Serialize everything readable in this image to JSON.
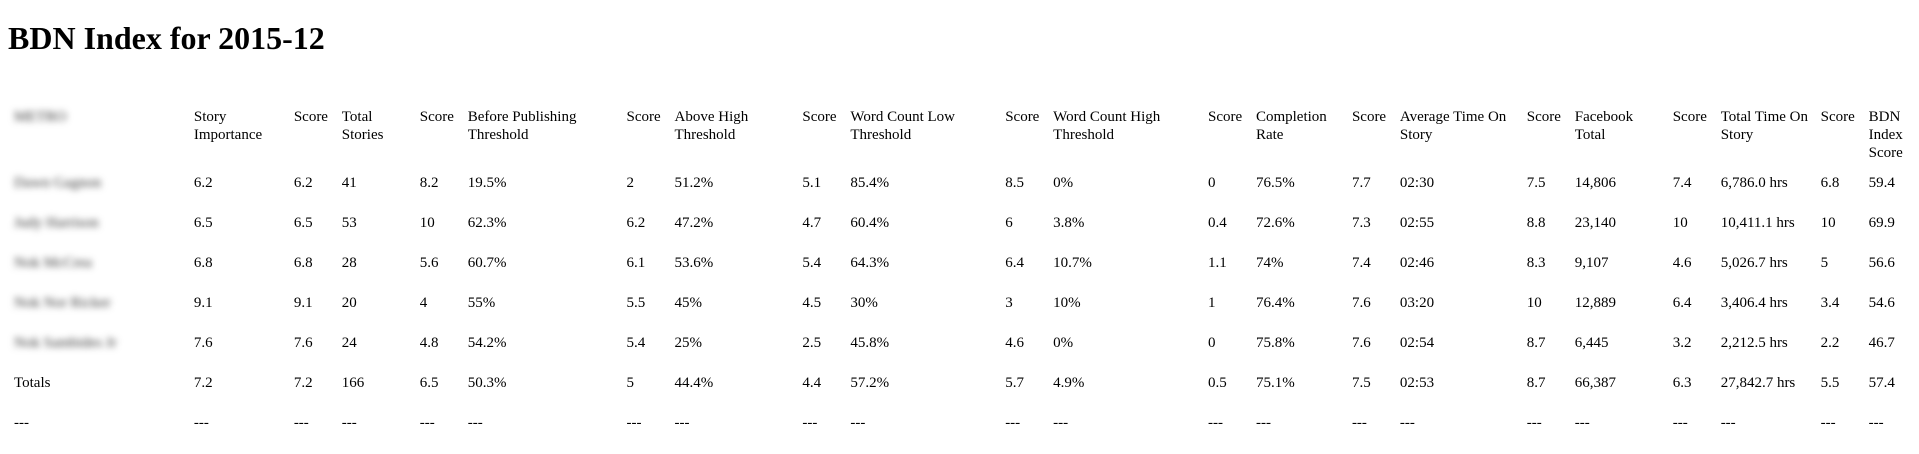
{
  "title": "BDN Index for 2015-12",
  "table": {
    "headers": [
      "METRO",
      "Story Importance",
      "Score",
      "Total Stories",
      "Score",
      "Before Publishing Threshold",
      "Score",
      "Above High Threshold",
      "Score",
      "Word Count Low Threshold",
      "Score",
      "Word Count High Threshold",
      "Score",
      "Completion Rate",
      "Score",
      "Average Time On Story",
      "Score",
      "Facebook Total",
      "Score",
      "Total Time On Story",
      "Score",
      "BDN Index Score"
    ],
    "rows": [
      [
        "Dawn Gagnon",
        "6.2",
        "6.2",
        "41",
        "8.2",
        "19.5%",
        "2",
        "51.2%",
        "5.1",
        "85.4%",
        "8.5",
        "0%",
        "0",
        "76.5%",
        "7.7",
        "02:30",
        "7.5",
        "14,806",
        "7.4",
        "6,786.0 hrs",
        "6.8",
        "59.4"
      ],
      [
        "Judy Harrison",
        "6.5",
        "6.5",
        "53",
        "10",
        "62.3%",
        "6.2",
        "47.2%",
        "4.7",
        "60.4%",
        "6",
        "3.8%",
        "0.4",
        "72.6%",
        "7.3",
        "02:55",
        "8.8",
        "23,140",
        "10",
        "10,411.1 hrs",
        "10",
        "69.9"
      ],
      [
        "Nok McCrea",
        "6.8",
        "6.8",
        "28",
        "5.6",
        "60.7%",
        "6.1",
        "53.6%",
        "5.4",
        "64.3%",
        "6.4",
        "10.7%",
        "1.1",
        "74%",
        "7.4",
        "02:46",
        "8.3",
        "9,107",
        "4.6",
        "5,026.7 hrs",
        "5",
        "56.6"
      ],
      [
        "Nok Nor Ricker",
        "9.1",
        "9.1",
        "20",
        "4",
        "55%",
        "5.5",
        "45%",
        "4.5",
        "30%",
        "3",
        "10%",
        "1",
        "76.4%",
        "7.6",
        "03:20",
        "10",
        "12,889",
        "6.4",
        "3,406.4 hrs",
        "3.4",
        "54.6"
      ],
      [
        "Nok Sambides Jr",
        "7.6",
        "7.6",
        "24",
        "4.8",
        "54.2%",
        "5.4",
        "25%",
        "2.5",
        "45.8%",
        "4.6",
        "0%",
        "0",
        "75.8%",
        "7.6",
        "02:54",
        "8.7",
        "6,445",
        "3.2",
        "2,212.5 hrs",
        "2.2",
        "46.7"
      ],
      [
        "Totals",
        "7.2",
        "7.2",
        "166",
        "6.5",
        "50.3%",
        "5",
        "44.4%",
        "4.4",
        "57.2%",
        "5.7",
        "4.9%",
        "0.5",
        "75.1%",
        "7.5",
        "02:53",
        "8.7",
        "66,387",
        "6.3",
        "27,842.7 hrs",
        "5.5",
        "57.4"
      ],
      [
        "---",
        "---",
        "---",
        "---",
        "---",
        "---",
        "---",
        "---",
        "---",
        "---",
        "---",
        "---",
        "---",
        "---",
        "---",
        "---",
        "---",
        "---",
        "---",
        "---",
        "---",
        "---"
      ]
    ]
  }
}
